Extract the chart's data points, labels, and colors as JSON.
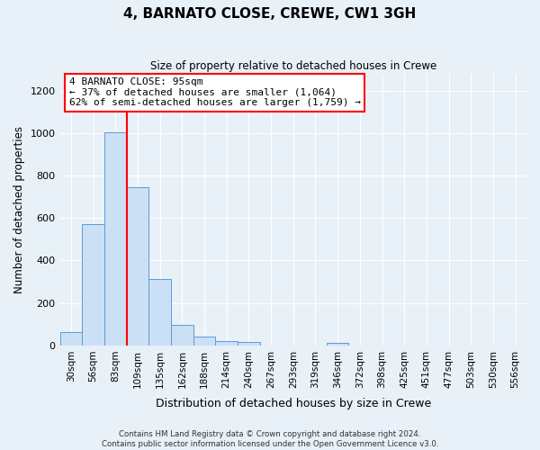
{
  "title": "4, BARNATO CLOSE, CREWE, CW1 3GH",
  "subtitle": "Size of property relative to detached houses in Crewe",
  "xlabel": "Distribution of detached houses by size in Crewe",
  "ylabel": "Number of detached properties",
  "bar_labels": [
    "30sqm",
    "56sqm",
    "83sqm",
    "109sqm",
    "135sqm",
    "162sqm",
    "188sqm",
    "214sqm",
    "240sqm",
    "267sqm",
    "293sqm",
    "319sqm",
    "346sqm",
    "372sqm",
    "398sqm",
    "425sqm",
    "451sqm",
    "477sqm",
    "503sqm",
    "530sqm",
    "556sqm"
  ],
  "bar_heights": [
    65,
    570,
    1005,
    745,
    315,
    95,
    40,
    22,
    15,
    0,
    0,
    0,
    12,
    0,
    0,
    0,
    0,
    0,
    0,
    0,
    0
  ],
  "bar_color": "#cce0f5",
  "bar_edge_color": "#5b9bd5",
  "vline_color": "red",
  "annotation_title": "4 BARNATO CLOSE: 95sqm",
  "annotation_line1": "← 37% of detached houses are smaller (1,064)",
  "annotation_line2": "62% of semi-detached houses are larger (1,759) →",
  "annotation_box_color": "#ffffff",
  "annotation_box_edge_color": "red",
  "ylim": [
    0,
    1280
  ],
  "yticks": [
    0,
    200,
    400,
    600,
    800,
    1000,
    1200
  ],
  "footer_line1": "Contains HM Land Registry data © Crown copyright and database right 2024.",
  "footer_line2": "Contains public sector information licensed under the Open Government Licence v3.0.",
  "background_color": "#e8f0f8",
  "plot_background_color": "#e8f0f8"
}
